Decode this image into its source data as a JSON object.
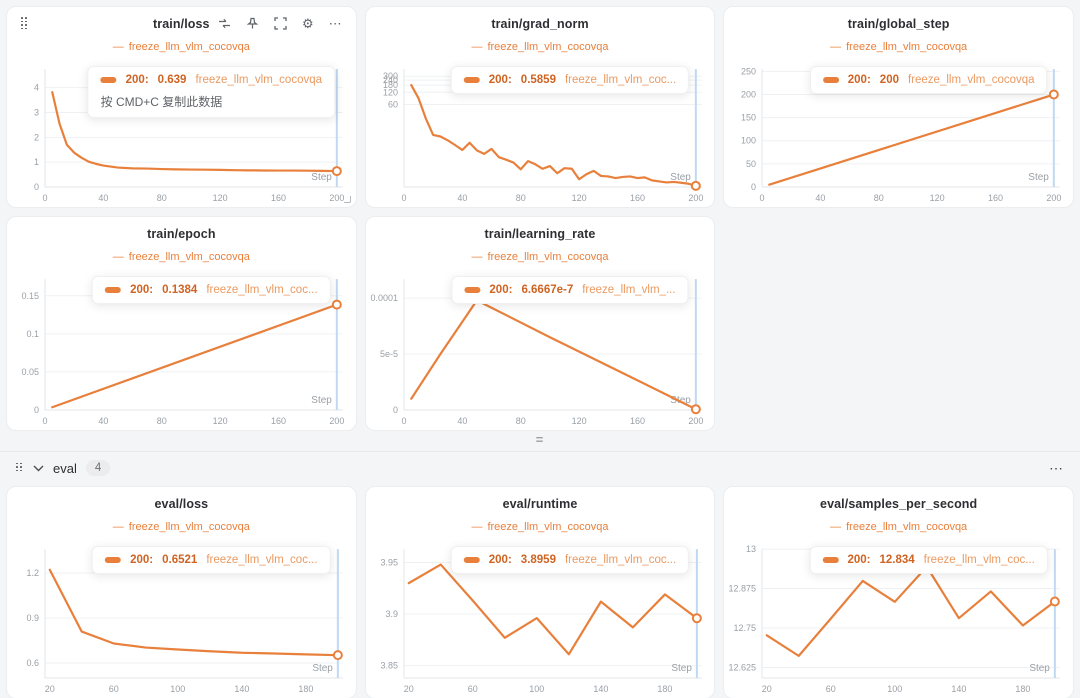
{
  "colors": {
    "line": "#e8803c",
    "value_text": "#cf6322",
    "series_text": "#ea9a62",
    "crosshair": "#bfd9f2",
    "grid": "#eef1f4",
    "axis": "#e2e5e8",
    "tick_text": "#9aa0a6"
  },
  "icons": {
    "gear": "⚙",
    "more": "⋯",
    "eq": "=",
    "legend_dash": "—"
  },
  "eval_section": {
    "label": "eval",
    "count": "4"
  },
  "chart_data": [
    {
      "type": "line",
      "title": "train/loss",
      "legend": "freeze_llm_vlm_cocovqa",
      "x_label": "Step",
      "xlim": [
        0,
        204
      ],
      "xticks": [
        0,
        40,
        80,
        120,
        160,
        200
      ],
      "yscale": "linear",
      "ylim": [
        0,
        4.75
      ],
      "yticks": [
        {
          "v": 0,
          "label": "0"
        },
        {
          "v": 1,
          "label": "1"
        },
        {
          "v": 2,
          "label": "2"
        },
        {
          "v": 3,
          "label": "3"
        },
        {
          "v": 4,
          "label": "4"
        }
      ],
      "points": [
        [
          5,
          3.82
        ],
        [
          10,
          2.55
        ],
        [
          15,
          1.7
        ],
        [
          20,
          1.38
        ],
        [
          25,
          1.18
        ],
        [
          30,
          1.02
        ],
        [
          35,
          0.93
        ],
        [
          40,
          0.86
        ],
        [
          45,
          0.82
        ],
        [
          50,
          0.78
        ],
        [
          60,
          0.75
        ],
        [
          70,
          0.74
        ],
        [
          80,
          0.72
        ],
        [
          90,
          0.71
        ],
        [
          100,
          0.7
        ],
        [
          110,
          0.695
        ],
        [
          120,
          0.69
        ],
        [
          130,
          0.675
        ],
        [
          140,
          0.67
        ],
        [
          150,
          0.665
        ],
        [
          160,
          0.66
        ],
        [
          170,
          0.662
        ],
        [
          180,
          0.655
        ],
        [
          190,
          0.65
        ],
        [
          200,
          0.639
        ]
      ],
      "crosshair_x": 200,
      "tooltip": {
        "step_label": "200:",
        "value": "0.639",
        "series": "freeze_llm_vlm_cocovqa",
        "hint": "按 CMD+C 复制此数据"
      }
    },
    {
      "type": "line",
      "title": "train/grad_norm",
      "legend": "freeze_llm_vlm_cocovqa",
      "x_label": "Step",
      "xlim": [
        0,
        204
      ],
      "xticks": [
        0,
        40,
        80,
        120,
        160,
        200
      ],
      "yscale": "log",
      "ylim": [
        0.55,
        450
      ],
      "yticks": [
        {
          "v": 60,
          "label": "60"
        },
        {
          "v": 120,
          "label": "120"
        },
        {
          "v": 180,
          "label": "180"
        },
        {
          "v": 240,
          "label": "240"
        },
        {
          "v": 300,
          "label": "300"
        }
      ],
      "points": [
        [
          5,
          181
        ],
        [
          10,
          85
        ],
        [
          15,
          27
        ],
        [
          20,
          10.6
        ],
        [
          25,
          9.7
        ],
        [
          30,
          7.8
        ],
        [
          35,
          6.0
        ],
        [
          40,
          4.5
        ],
        [
          45,
          6.8
        ],
        [
          50,
          4.4
        ],
        [
          55,
          3.6
        ],
        [
          60,
          4.8
        ],
        [
          65,
          3.0
        ],
        [
          70,
          2.6
        ],
        [
          75,
          2.2
        ],
        [
          80,
          1.5
        ],
        [
          85,
          2.4
        ],
        [
          90,
          2.0
        ],
        [
          95,
          1.55
        ],
        [
          100,
          1.8
        ],
        [
          105,
          1.2
        ],
        [
          110,
          1.6
        ],
        [
          115,
          1.55
        ],
        [
          120,
          0.85
        ],
        [
          125,
          1.13
        ],
        [
          130,
          1.37
        ],
        [
          135,
          1.03
        ],
        [
          140,
          1.0
        ],
        [
          145,
          0.91
        ],
        [
          150,
          0.97
        ],
        [
          155,
          1.0
        ],
        [
          160,
          0.91
        ],
        [
          165,
          0.95
        ],
        [
          170,
          0.8
        ],
        [
          175,
          0.75
        ],
        [
          180,
          0.71
        ],
        [
          185,
          0.73
        ],
        [
          190,
          0.7
        ],
        [
          195,
          0.66
        ],
        [
          200,
          0.5859
        ]
      ],
      "crosshair_x": 200,
      "tooltip": {
        "step_label": "200:",
        "value": "0.5859",
        "series": "freeze_llm_vlm_coc..."
      }
    },
    {
      "type": "line",
      "title": "train/global_step",
      "legend": "freeze_llm_vlm_cocovqa",
      "x_label": "Step",
      "xlim": [
        0,
        204
      ],
      "xticks": [
        0,
        40,
        80,
        120,
        160,
        200
      ],
      "yscale": "linear",
      "ylim": [
        0,
        255
      ],
      "yticks": [
        {
          "v": 0,
          "label": "0"
        },
        {
          "v": 50,
          "label": "50"
        },
        {
          "v": 100,
          "label": "100"
        },
        {
          "v": 150,
          "label": "150"
        },
        {
          "v": 200,
          "label": "200"
        },
        {
          "v": 250,
          "label": "250"
        }
      ],
      "points": [
        [
          5,
          5
        ],
        [
          200,
          200
        ]
      ],
      "crosshair_x": 200,
      "tooltip": {
        "step_label": "200:",
        "value": "200",
        "series": "freeze_llm_vlm_cocovqa"
      }
    },
    {
      "type": "line",
      "title": "train/epoch",
      "legend": "freeze_llm_vlm_cocovqa",
      "x_label": "Step",
      "xlim": [
        0,
        204
      ],
      "xticks": [
        0,
        40,
        80,
        120,
        160,
        200
      ],
      "yscale": "linear",
      "ylim": [
        0,
        0.172
      ],
      "yticks": [
        {
          "v": 0,
          "label": "0"
        },
        {
          "v": 0.05,
          "label": "0.05"
        },
        {
          "v": 0.1,
          "label": "0.1"
        },
        {
          "v": 0.15,
          "label": "0.15"
        }
      ],
      "points": [
        [
          5,
          0.0035
        ],
        [
          200,
          0.1384
        ]
      ],
      "crosshair_x": 200,
      "tooltip": {
        "step_label": "200:",
        "value": "0.1384",
        "series": "freeze_llm_vlm_coc..."
      }
    },
    {
      "type": "line",
      "title": "train/learning_rate",
      "legend": "freeze_llm_vlm_cocovqa",
      "x_label": "Step",
      "xlim": [
        0,
        204
      ],
      "xticks": [
        0,
        40,
        80,
        120,
        160,
        200
      ],
      "yscale": "linear",
      "ylim": [
        0,
        0.000117
      ],
      "yticks": [
        {
          "v": 0,
          "label": "0"
        },
        {
          "v": 5e-05,
          "label": "5e-5"
        },
        {
          "v": 0.0001,
          "label": "0.0001"
        }
      ],
      "points": [
        [
          5,
          1e-05
        ],
        [
          25,
          5e-05
        ],
        [
          50,
          9.8e-05
        ],
        [
          100,
          6.5e-05
        ],
        [
          150,
          3.3e-05
        ],
        [
          200,
          6.6667e-07
        ]
      ],
      "crosshair_x": 200,
      "tooltip": {
        "step_label": "200:",
        "value": "6.6667e-7",
        "series": "freeze_llm_vlm_..."
      }
    },
    {
      "type": "line",
      "title": "eval/loss",
      "legend": "freeze_llm_vlm_cocovqa",
      "x_label": "Step",
      "xlim": [
        17,
        203
      ],
      "xticks": [
        20,
        60,
        100,
        140,
        180
      ],
      "yscale": "linear",
      "ylim": [
        0.5,
        1.36
      ],
      "yticks": [
        {
          "v": 0.6,
          "label": "0.6"
        },
        {
          "v": 0.9,
          "label": "0.9"
        },
        {
          "v": 1.2,
          "label": "1.2"
        }
      ],
      "points": [
        [
          20,
          1.222
        ],
        [
          40,
          0.809
        ],
        [
          60,
          0.73
        ],
        [
          80,
          0.703
        ],
        [
          100,
          0.69
        ],
        [
          120,
          0.678
        ],
        [
          140,
          0.668
        ],
        [
          160,
          0.663
        ],
        [
          180,
          0.657
        ],
        [
          200,
          0.6521
        ]
      ],
      "crosshair_x": 200,
      "tooltip": {
        "step_label": "200:",
        "value": "0.6521",
        "series": "freeze_llm_vlm_coc..."
      }
    },
    {
      "type": "line",
      "title": "eval/runtime",
      "legend": "freeze_llm_vlm_cocovqa",
      "x_label": "Step",
      "xlim": [
        17,
        203
      ],
      "xticks": [
        20,
        60,
        100,
        140,
        180
      ],
      "yscale": "linear",
      "ylim": [
        3.838,
        3.963
      ],
      "yticks": [
        {
          "v": 3.85,
          "label": "3.85"
        },
        {
          "v": 3.9,
          "label": "3.9"
        },
        {
          "v": 3.95,
          "label": "3.95"
        }
      ],
      "points": [
        [
          20,
          3.93
        ],
        [
          40,
          3.948
        ],
        [
          60,
          3.913
        ],
        [
          80,
          3.877
        ],
        [
          100,
          3.896
        ],
        [
          120,
          3.861
        ],
        [
          140,
          3.912
        ],
        [
          160,
          3.887
        ],
        [
          180,
          3.919
        ],
        [
          200,
          3.8959
        ]
      ],
      "crosshair_x": 200,
      "tooltip": {
        "step_label": "200:",
        "value": "3.8959",
        "series": "freeze_llm_vlm_coc..."
      }
    },
    {
      "type": "line",
      "title": "eval/samples_per_second",
      "legend": "freeze_llm_vlm_cocovqa",
      "x_label": "Step",
      "xlim": [
        17,
        203
      ],
      "xticks": [
        20,
        60,
        100,
        140,
        180
      ],
      "yscale": "linear",
      "ylim": [
        12.592,
        13.0
      ],
      "yticks": [
        {
          "v": 12.625,
          "label": "12.625"
        },
        {
          "v": 12.75,
          "label": "12.75"
        },
        {
          "v": 12.875,
          "label": "12.875"
        },
        {
          "v": 13,
          "label": "13"
        }
      ],
      "points": [
        [
          20,
          12.727
        ],
        [
          40,
          12.662
        ],
        [
          60,
          12.78
        ],
        [
          80,
          12.899
        ],
        [
          100,
          12.833
        ],
        [
          120,
          12.944
        ],
        [
          140,
          12.781
        ],
        [
          160,
          12.866
        ],
        [
          180,
          12.758
        ],
        [
          200,
          12.834
        ]
      ],
      "crosshair_x": 200,
      "tooltip": {
        "step_label": "200:",
        "value": "12.834",
        "series": "freeze_llm_vlm_coc..."
      }
    }
  ]
}
